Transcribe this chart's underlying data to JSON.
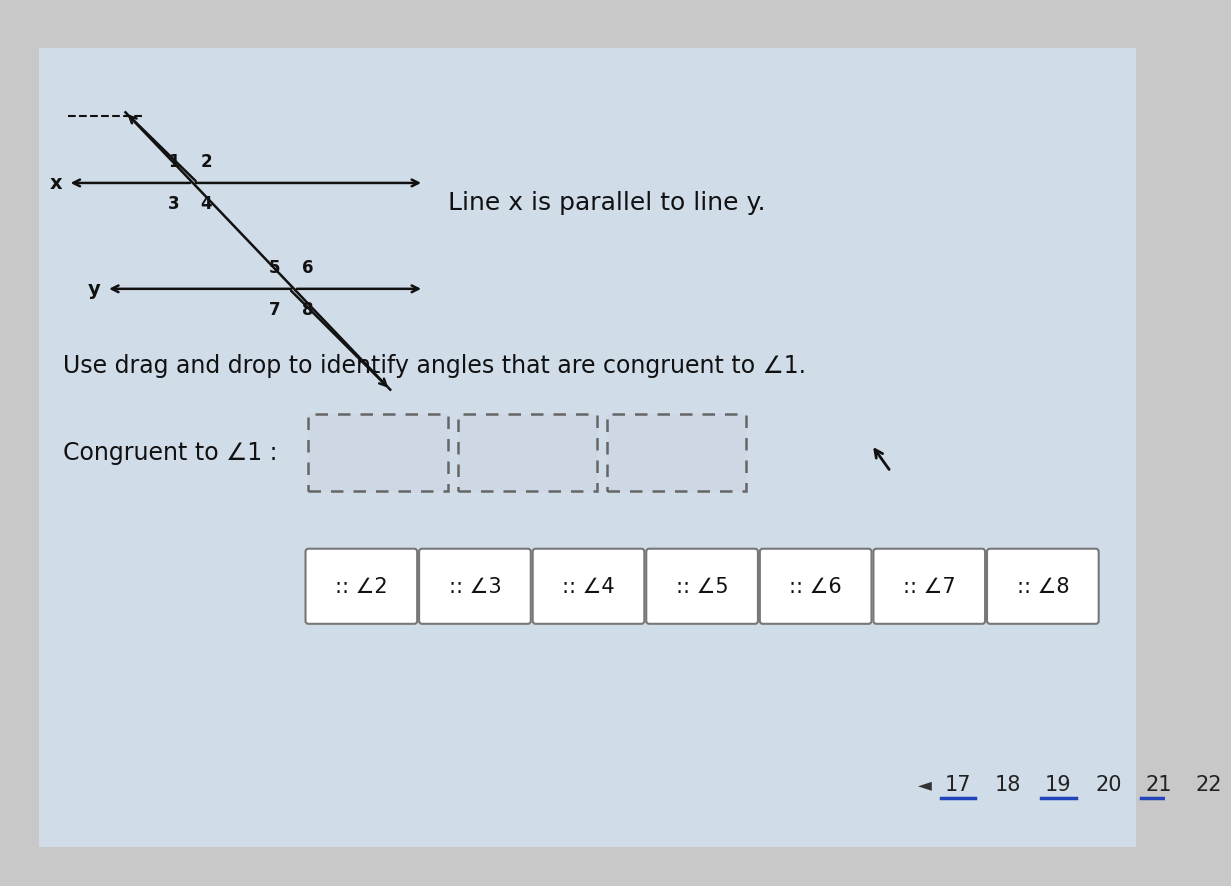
{
  "bg_outer": "#c8c8c8",
  "bg_inner": "#dde8f0",
  "white_box_color": "#e8eef5",
  "line_color": "#111111",
  "title_text": "Line x is parallel to line y.",
  "instruction_text": "Use drag and drop to identify angles that are congruent to ™1.",
  "congruent_label": "Congruent to ™1 :",
  "drag_labels": [
    ":: ∠2",
    ":: ∠3",
    ":: ∠4",
    ":: ∠5",
    ":: ∠6",
    ":: ∠7",
    ":: ∠8"
  ],
  "page_numbers": [
    "17",
    "18",
    "19",
    "20",
    "21",
    "22"
  ],
  "underline_pages": [
    0,
    2,
    4
  ],
  "underline_color": "#2244bb",
  "cursor_color": "#111111"
}
